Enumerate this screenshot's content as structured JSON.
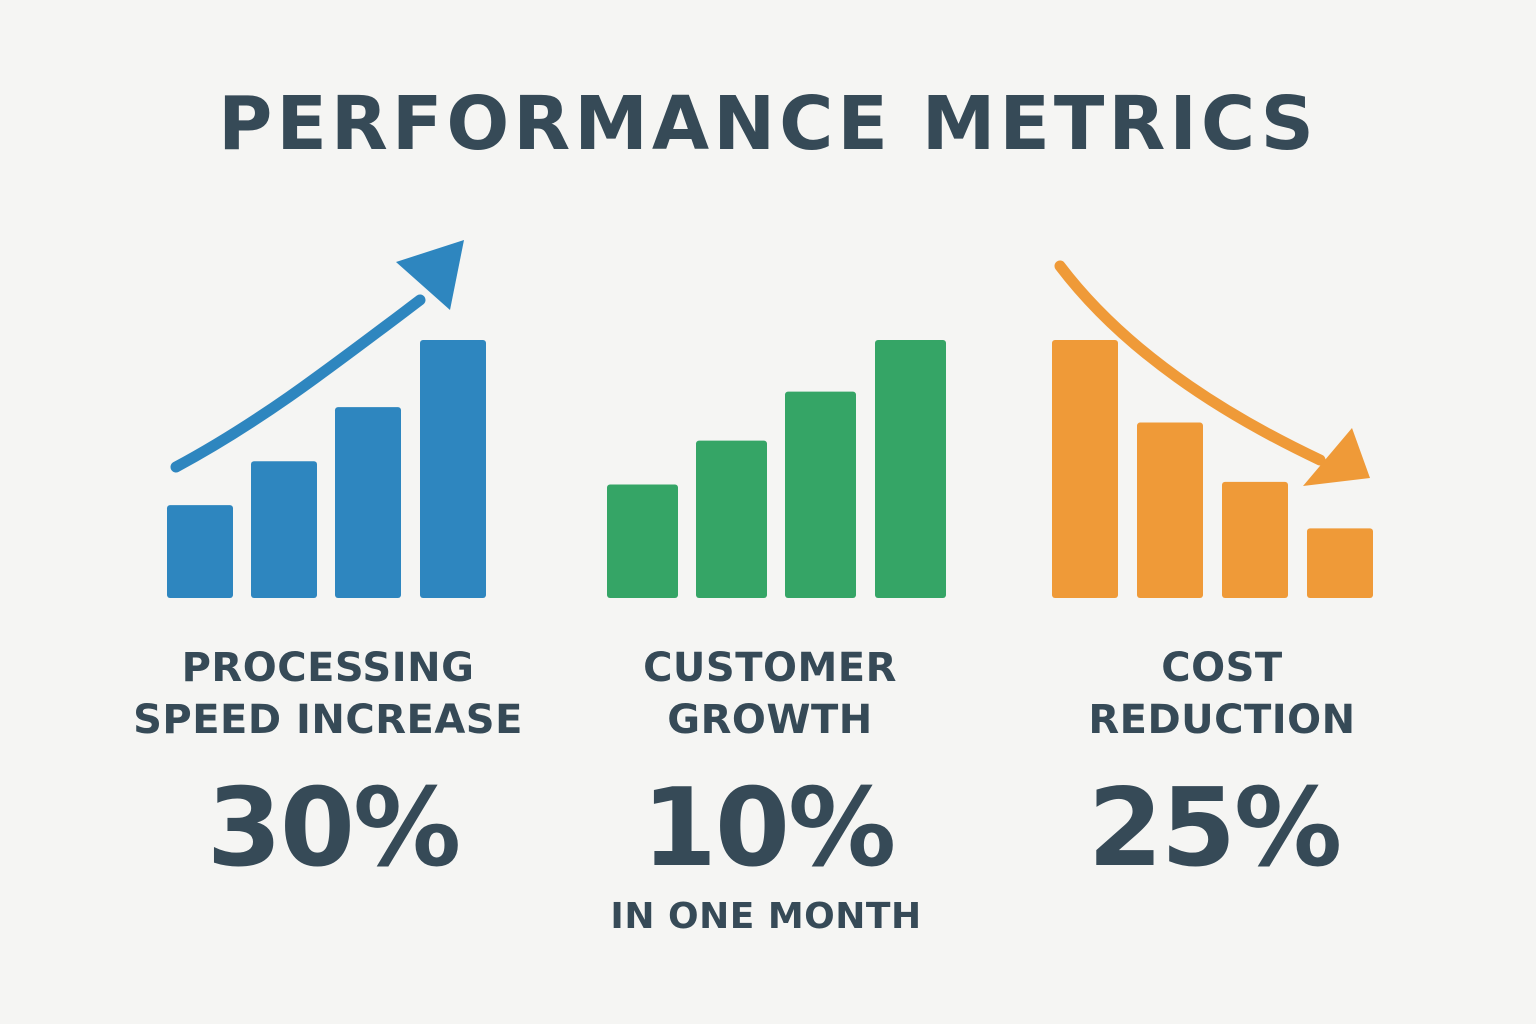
{
  "title": "PERFORMANCE METRICS",
  "metrics": [
    {
      "label_lines": [
        "PROCESSING",
        "SPEED INCREASE"
      ],
      "value": "30%",
      "note": "",
      "color": "#2e86bf",
      "trend": "up",
      "arrow_icon": "trend-up-arrow-icon"
    },
    {
      "label_lines": [
        "CUSTOMER",
        "GROWTH"
      ],
      "value": "10%",
      "note": "IN ONE MONTH",
      "color": "#35a566",
      "trend": "up",
      "arrow_icon": ""
    },
    {
      "label_lines": [
        "COST",
        "REDUCTION"
      ],
      "value": "25%",
      "note": "",
      "color": "#ef9a38",
      "trend": "down",
      "arrow_icon": "trend-down-arrow-icon"
    }
  ],
  "chart_data": [
    {
      "type": "bar",
      "values": [
        3.6,
        5.3,
        7.4,
        10
      ],
      "trend": "up",
      "color": "#2e86bf"
    },
    {
      "type": "bar",
      "values": [
        4.4,
        6.1,
        8.0,
        10
      ],
      "trend": "up",
      "color": "#35a566"
    },
    {
      "type": "bar",
      "values": [
        10,
        6.8,
        4.5,
        2.7
      ],
      "trend": "down",
      "color": "#ef9a38"
    }
  ]
}
